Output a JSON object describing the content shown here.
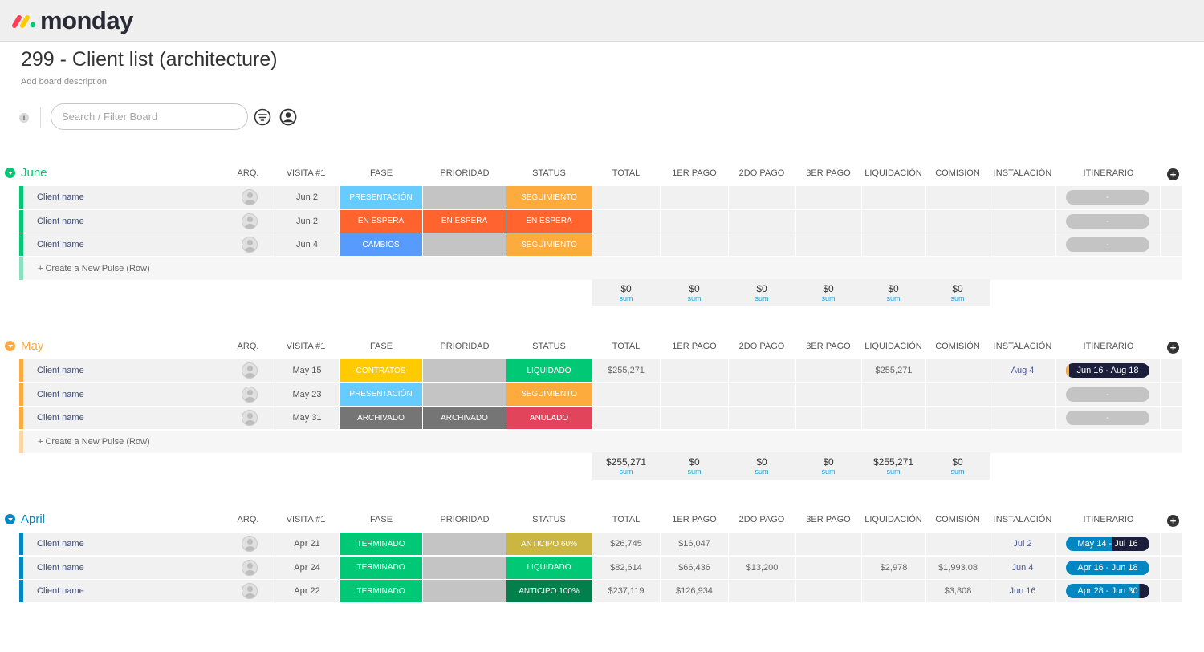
{
  "app": {
    "name": "monday"
  },
  "board": {
    "title": "299 - Client list (architecture)",
    "description": "Add board description",
    "search_placeholder": "Search / Filter Board"
  },
  "columns": [
    "ARQ.",
    "VISITA #1",
    "FASE",
    "PRIORIDAD",
    "STATUS",
    "TOTAL",
    "1ER PAGO",
    "2DO PAGO",
    "3ER PAGO",
    "LIQUIDACIÓN",
    "COMISIÓN",
    "INSTALACIÓN",
    "ITINERARIO"
  ],
  "create_row_label": "+ Create a New Pulse (Row)",
  "colors": {
    "presentacion": "#66ccff",
    "en_espera": "#ff642e",
    "cambios": "#579bfc",
    "seguimiento": "#fdab3d",
    "contratos": "#ffcb00",
    "liquidado": "#00c875",
    "archivado": "#757575",
    "anulado": "#e2445c",
    "terminado": "#00c875",
    "anticipo_60": "#cab641",
    "anticipo_100": "#037f4c",
    "empty": "#c4c4c4",
    "june": "#00c875",
    "may": "#fdab3d",
    "april": "#0086c0",
    "itinerary_dark": "#1c1f3b"
  },
  "groups": [
    {
      "name": "June",
      "color": "#00c875",
      "create_bar": "#8adfbe",
      "rows": [
        {
          "name": "Client name",
          "visita": "Jun 2",
          "fase": "PRESENTACIÓN",
          "fase_color": "#66ccff",
          "prioridad": "",
          "prioridad_color": "#c4c4c4",
          "status": "SEGUIMIENTO",
          "status_color": "#fdab3d",
          "total": "",
          "pago1": "",
          "pago2": "",
          "pago3": "",
          "liquidacion": "",
          "comision": "",
          "instalacion": "",
          "itinerario": "-",
          "itin_style": "empty",
          "itin_progress": 0
        },
        {
          "name": "Client name",
          "visita": "Jun 2",
          "fase": "EN ESPERA",
          "fase_color": "#ff642e",
          "prioridad": "EN ESPERA",
          "prioridad_color": "#ff642e",
          "status": "EN ESPERA",
          "status_color": "#ff642e",
          "total": "",
          "pago1": "",
          "pago2": "",
          "pago3": "",
          "liquidacion": "",
          "comision": "",
          "instalacion": "",
          "itinerario": "-",
          "itin_style": "empty",
          "itin_progress": 0
        },
        {
          "name": "Client name",
          "visita": "Jun 4",
          "fase": "CAMBIOS",
          "fase_color": "#579bfc",
          "prioridad": "",
          "prioridad_color": "#c4c4c4",
          "status": "SEGUIMIENTO",
          "status_color": "#fdab3d",
          "total": "",
          "pago1": "",
          "pago2": "",
          "pago3": "",
          "liquidacion": "",
          "comision": "",
          "instalacion": "",
          "itinerario": "-",
          "itin_style": "empty",
          "itin_progress": 0
        }
      ],
      "sums": {
        "total": "$0",
        "pago1": "$0",
        "pago2": "$0",
        "pago3": "$0",
        "liquidacion": "$0",
        "comision": "$0",
        "label": "sum"
      }
    },
    {
      "name": "May",
      "color": "#fdab3d",
      "create_bar": "#fbd7a8",
      "rows": [
        {
          "name": "Client name",
          "visita": "May 15",
          "fase": "CONTRATOS",
          "fase_color": "#ffcb00",
          "prioridad": "",
          "prioridad_color": "#c4c4c4",
          "status": "LIQUIDADO",
          "status_color": "#00c875",
          "total": "$255,271",
          "pago1": "",
          "pago2": "",
          "pago3": "",
          "liquidacion": "$255,271",
          "comision": "",
          "instalacion": "Aug 4",
          "itinerario": "Jun 16 - Aug 18",
          "itin_style": "dark",
          "itin_progress": 1
        },
        {
          "name": "Client name",
          "visita": "May 23",
          "fase": "PRESENTACIÓN",
          "fase_color": "#66ccff",
          "prioridad": "",
          "prioridad_color": "#c4c4c4",
          "status": "SEGUIMIENTO",
          "status_color": "#fdab3d",
          "total": "",
          "pago1": "",
          "pago2": "",
          "pago3": "",
          "liquidacion": "",
          "comision": "",
          "instalacion": "",
          "itinerario": "-",
          "itin_style": "empty",
          "itin_progress": 0
        },
        {
          "name": "Client name",
          "visita": "May 31",
          "fase": "ARCHIVADO",
          "fase_color": "#757575",
          "prioridad": "ARCHIVADO",
          "prioridad_color": "#757575",
          "status": "ANULADO",
          "status_color": "#e2445c",
          "total": "",
          "pago1": "",
          "pago2": "",
          "pago3": "",
          "liquidacion": "",
          "comision": "",
          "instalacion": "",
          "itinerario": "-",
          "itin_style": "empty",
          "itin_progress": 0
        }
      ],
      "sums": {
        "total": "$255,271",
        "pago1": "$0",
        "pago2": "$0",
        "pago3": "$0",
        "liquidacion": "$255,271",
        "comision": "$0",
        "label": "sum"
      }
    },
    {
      "name": "April",
      "color": "#0086c0",
      "create_bar": "#9fd0e8",
      "rows": [
        {
          "name": "Client name",
          "visita": "Apr 21",
          "fase": "TERMINADO",
          "fase_color": "#00c875",
          "prioridad": "",
          "prioridad_color": "#c4c4c4",
          "status": "ANTICIPO 60%",
          "status_color": "#cab641",
          "total": "$26,745",
          "pago1": "$16,047",
          "pago2": "",
          "pago3": "",
          "liquidacion": "",
          "comision": "",
          "instalacion": "Jul 2",
          "itinerario": "May 14 - Jul 16",
          "itin_style": "split",
          "itin_progress": 0.56
        },
        {
          "name": "Client name",
          "visita": "Apr 24",
          "fase": "TERMINADO",
          "fase_color": "#00c875",
          "prioridad": "",
          "prioridad_color": "#c4c4c4",
          "status": "LIQUIDADO",
          "status_color": "#00c875",
          "total": "$82,614",
          "pago1": "$66,436",
          "pago2": "$13,200",
          "pago3": "",
          "liquidacion": "$2,978",
          "comision": "$1,993.08",
          "instalacion": "Jun 4",
          "itinerario": "Apr 16 - Jun 18",
          "itin_style": "split",
          "itin_progress": 1
        },
        {
          "name": "Client name",
          "visita": "Apr 22",
          "fase": "TERMINADO",
          "fase_color": "#00c875",
          "prioridad": "",
          "prioridad_color": "#c4c4c4",
          "status": "ANTICIPO 100%",
          "status_color": "#037f4c",
          "total": "$237,119",
          "pago1": "$126,934",
          "pago2": "",
          "pago3": "",
          "liquidacion": "",
          "comision": "$3,808",
          "instalacion": "Jun 16",
          "itinerario": "Apr 28 - Jun 30",
          "itin_style": "split",
          "itin_progress": 0.88
        }
      ]
    }
  ]
}
